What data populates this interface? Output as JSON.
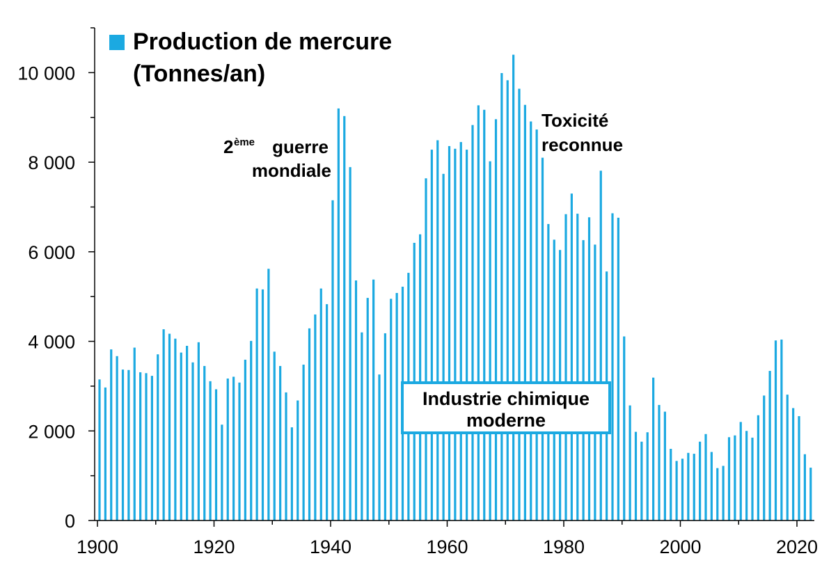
{
  "chart_data": {
    "type": "bar",
    "title": "",
    "xlabel": "",
    "ylabel": "",
    "ylim": [
      0,
      11000
    ],
    "xlim": [
      1900,
      2023
    ],
    "x_ticks": [
      "1900",
      "1920",
      "1940",
      "1960",
      "1980",
      "2000",
      "2020"
    ],
    "y_ticks": [
      "0",
      "2 000",
      "4 000",
      "6 000",
      "8 000",
      "10 000"
    ],
    "grid": false,
    "legend_position": "top-left",
    "bar_color": "#1ba9e1",
    "series": [
      {
        "name": "Production de mercure (Tonnes/an)",
        "x": [
          1900,
          1901,
          1902,
          1903,
          1904,
          1905,
          1906,
          1907,
          1908,
          1909,
          1910,
          1911,
          1912,
          1913,
          1914,
          1915,
          1916,
          1917,
          1918,
          1919,
          1920,
          1921,
          1922,
          1923,
          1924,
          1925,
          1926,
          1927,
          1928,
          1929,
          1930,
          1931,
          1932,
          1933,
          1934,
          1935,
          1936,
          1937,
          1938,
          1939,
          1940,
          1941,
          1942,
          1943,
          1944,
          1945,
          1946,
          1947,
          1948,
          1949,
          1950,
          1951,
          1952,
          1953,
          1954,
          1955,
          1956,
          1957,
          1958,
          1959,
          1960,
          1961,
          1962,
          1963,
          1964,
          1965,
          1966,
          1967,
          1968,
          1969,
          1970,
          1971,
          1972,
          1973,
          1974,
          1975,
          1976,
          1977,
          1978,
          1979,
          1980,
          1981,
          1982,
          1983,
          1984,
          1985,
          1986,
          1987,
          1988,
          1989,
          1990,
          1991,
          1992,
          1993,
          1994,
          1995,
          1996,
          1997,
          1998,
          1999,
          2000,
          2001,
          2002,
          2003,
          2004,
          2005,
          2006,
          2007,
          2008,
          2009,
          2010,
          2011,
          2012,
          2013,
          2014,
          2015,
          2016,
          2017,
          2018,
          2019,
          2020,
          2021,
          2022
        ],
        "values": [
          3150,
          2970,
          3820,
          3670,
          3370,
          3360,
          3860,
          3310,
          3290,
          3230,
          3710,
          4270,
          4170,
          4060,
          3750,
          3900,
          3530,
          3980,
          3450,
          3110,
          2930,
          2140,
          3170,
          3210,
          3080,
          3590,
          4010,
          5180,
          5160,
          5620,
          3770,
          3450,
          2860,
          2080,
          2680,
          3480,
          4290,
          4600,
          5180,
          4830,
          7150,
          9200,
          9030,
          7890,
          5360,
          4200,
          4970,
          5380,
          3260,
          4180,
          4950,
          5080,
          5220,
          5530,
          6200,
          6390,
          7640,
          8280,
          8490,
          7740,
          8360,
          8300,
          8450,
          8280,
          8830,
          9270,
          9170,
          8020,
          8960,
          9990,
          9830,
          10400,
          9640,
          9280,
          8910,
          8730,
          8100,
          6620,
          6270,
          6040,
          6840,
          7300,
          6850,
          6260,
          6770,
          6160,
          7810,
          5560,
          6860,
          6760,
          4110,
          2570,
          1980,
          1760,
          1970,
          3190,
          2580,
          2430,
          1600,
          1330,
          1380,
          1510,
          1490,
          1760,
          1930,
          1530,
          1170,
          1220,
          1860,
          1900,
          2200,
          2000,
          1850,
          2350,
          2790,
          3340,
          4020,
          4040,
          2810,
          2510,
          2330,
          1480,
          1180
        ]
      }
    ],
    "legend": {
      "line1": "Production de mercure",
      "line2": "(Tonnes/an)"
    },
    "annotations": {
      "ww2_sup_prefix": "2",
      "ww2_sup": "ème",
      "ww2_line1": "guerre",
      "ww2_line2": "mondiale",
      "toxicity_line1": "Toxicité",
      "toxicity_line2": "reconnue",
      "industry_line1": "Industrie chimique",
      "industry_line2": "moderne"
    }
  }
}
